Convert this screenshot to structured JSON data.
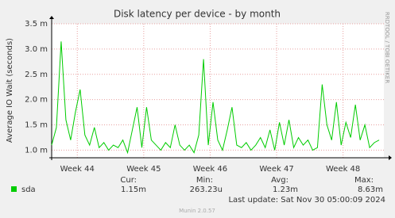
{
  "chart_data": {
    "type": "line",
    "title": "Disk latency per device - by month",
    "y_label": "Average IO Wait (seconds)",
    "side_label": "RRDTOOL / TOBI OETIKER",
    "xlim": [
      0,
      35
    ],
    "xticks": [
      {
        "value": 2.7,
        "label": "Week 44"
      },
      {
        "value": 9.7,
        "label": "Week 45"
      },
      {
        "value": 16.7,
        "label": "Week 46"
      },
      {
        "value": 23.7,
        "label": "Week 47"
      },
      {
        "value": 30.7,
        "label": "Week 48"
      }
    ],
    "ylim": [
      0.00085,
      0.0035
    ],
    "yticks": [
      {
        "value": 0.001,
        "label": "1.0 m"
      },
      {
        "value": 0.0015,
        "label": "1.5 m"
      },
      {
        "value": 0.002,
        "label": "2.0 m"
      },
      {
        "value": 0.0025,
        "label": "2.5 m"
      },
      {
        "value": 0.003,
        "label": "3.0 m"
      },
      {
        "value": 0.0035,
        "label": "3.5 m"
      }
    ],
    "grid": true,
    "x": [
      0,
      0.5,
      1,
      1.5,
      2,
      2.5,
      3,
      3.5,
      4,
      4.5,
      5,
      5.5,
      6,
      6.5,
      7,
      7.5,
      8,
      8.5,
      9,
      9.5,
      10,
      10.5,
      11,
      11.5,
      12,
      12.5,
      13,
      13.5,
      14,
      14.5,
      15,
      15.5,
      16,
      16.5,
      17,
      17.5,
      18,
      18.5,
      19,
      19.5,
      20,
      20.5,
      21,
      21.5,
      22,
      22.5,
      23,
      23.5,
      24,
      24.5,
      25,
      25.5,
      26,
      26.5,
      27,
      27.5,
      28,
      28.5,
      29,
      29.5,
      30,
      30.5,
      31,
      31.5,
      32,
      32.5,
      33,
      33.5,
      34,
      34.5
    ],
    "series": [
      {
        "name": "sda",
        "color": "#00cc00",
        "values": [
          0.0011,
          0.00145,
          0.00315,
          0.0016,
          0.0012,
          0.00175,
          0.0022,
          0.0013,
          0.0011,
          0.00145,
          0.00105,
          0.00115,
          0.001,
          0.0011,
          0.00105,
          0.0012,
          0.00095,
          0.0014,
          0.00185,
          0.00105,
          0.00185,
          0.0012,
          0.0011,
          0.001,
          0.00115,
          0.00105,
          0.0015,
          0.0011,
          0.001,
          0.0011,
          0.00095,
          0.0013,
          0.0028,
          0.0011,
          0.00195,
          0.0012,
          0.001,
          0.0014,
          0.00185,
          0.0011,
          0.00105,
          0.00115,
          0.001,
          0.0011,
          0.00125,
          0.00105,
          0.0014,
          0.001,
          0.00155,
          0.0011,
          0.0016,
          0.00105,
          0.00125,
          0.0011,
          0.0012,
          0.001,
          0.00105,
          0.0023,
          0.0015,
          0.0012,
          0.00195,
          0.0011,
          0.00155,
          0.00125,
          0.0019,
          0.0012,
          0.0015,
          0.00105,
          0.00115,
          0.0012
        ]
      }
    ],
    "stats": {
      "headers": [
        "Cur:",
        "Min:",
        "Avg:",
        "Max:"
      ],
      "values": [
        "1.15m",
        "263.23u",
        "1.23m",
        "8.63m"
      ]
    },
    "last_update": "Last update: Sat Nov 30 05:00:09 2024",
    "footer": "Munin 2.0.57"
  }
}
